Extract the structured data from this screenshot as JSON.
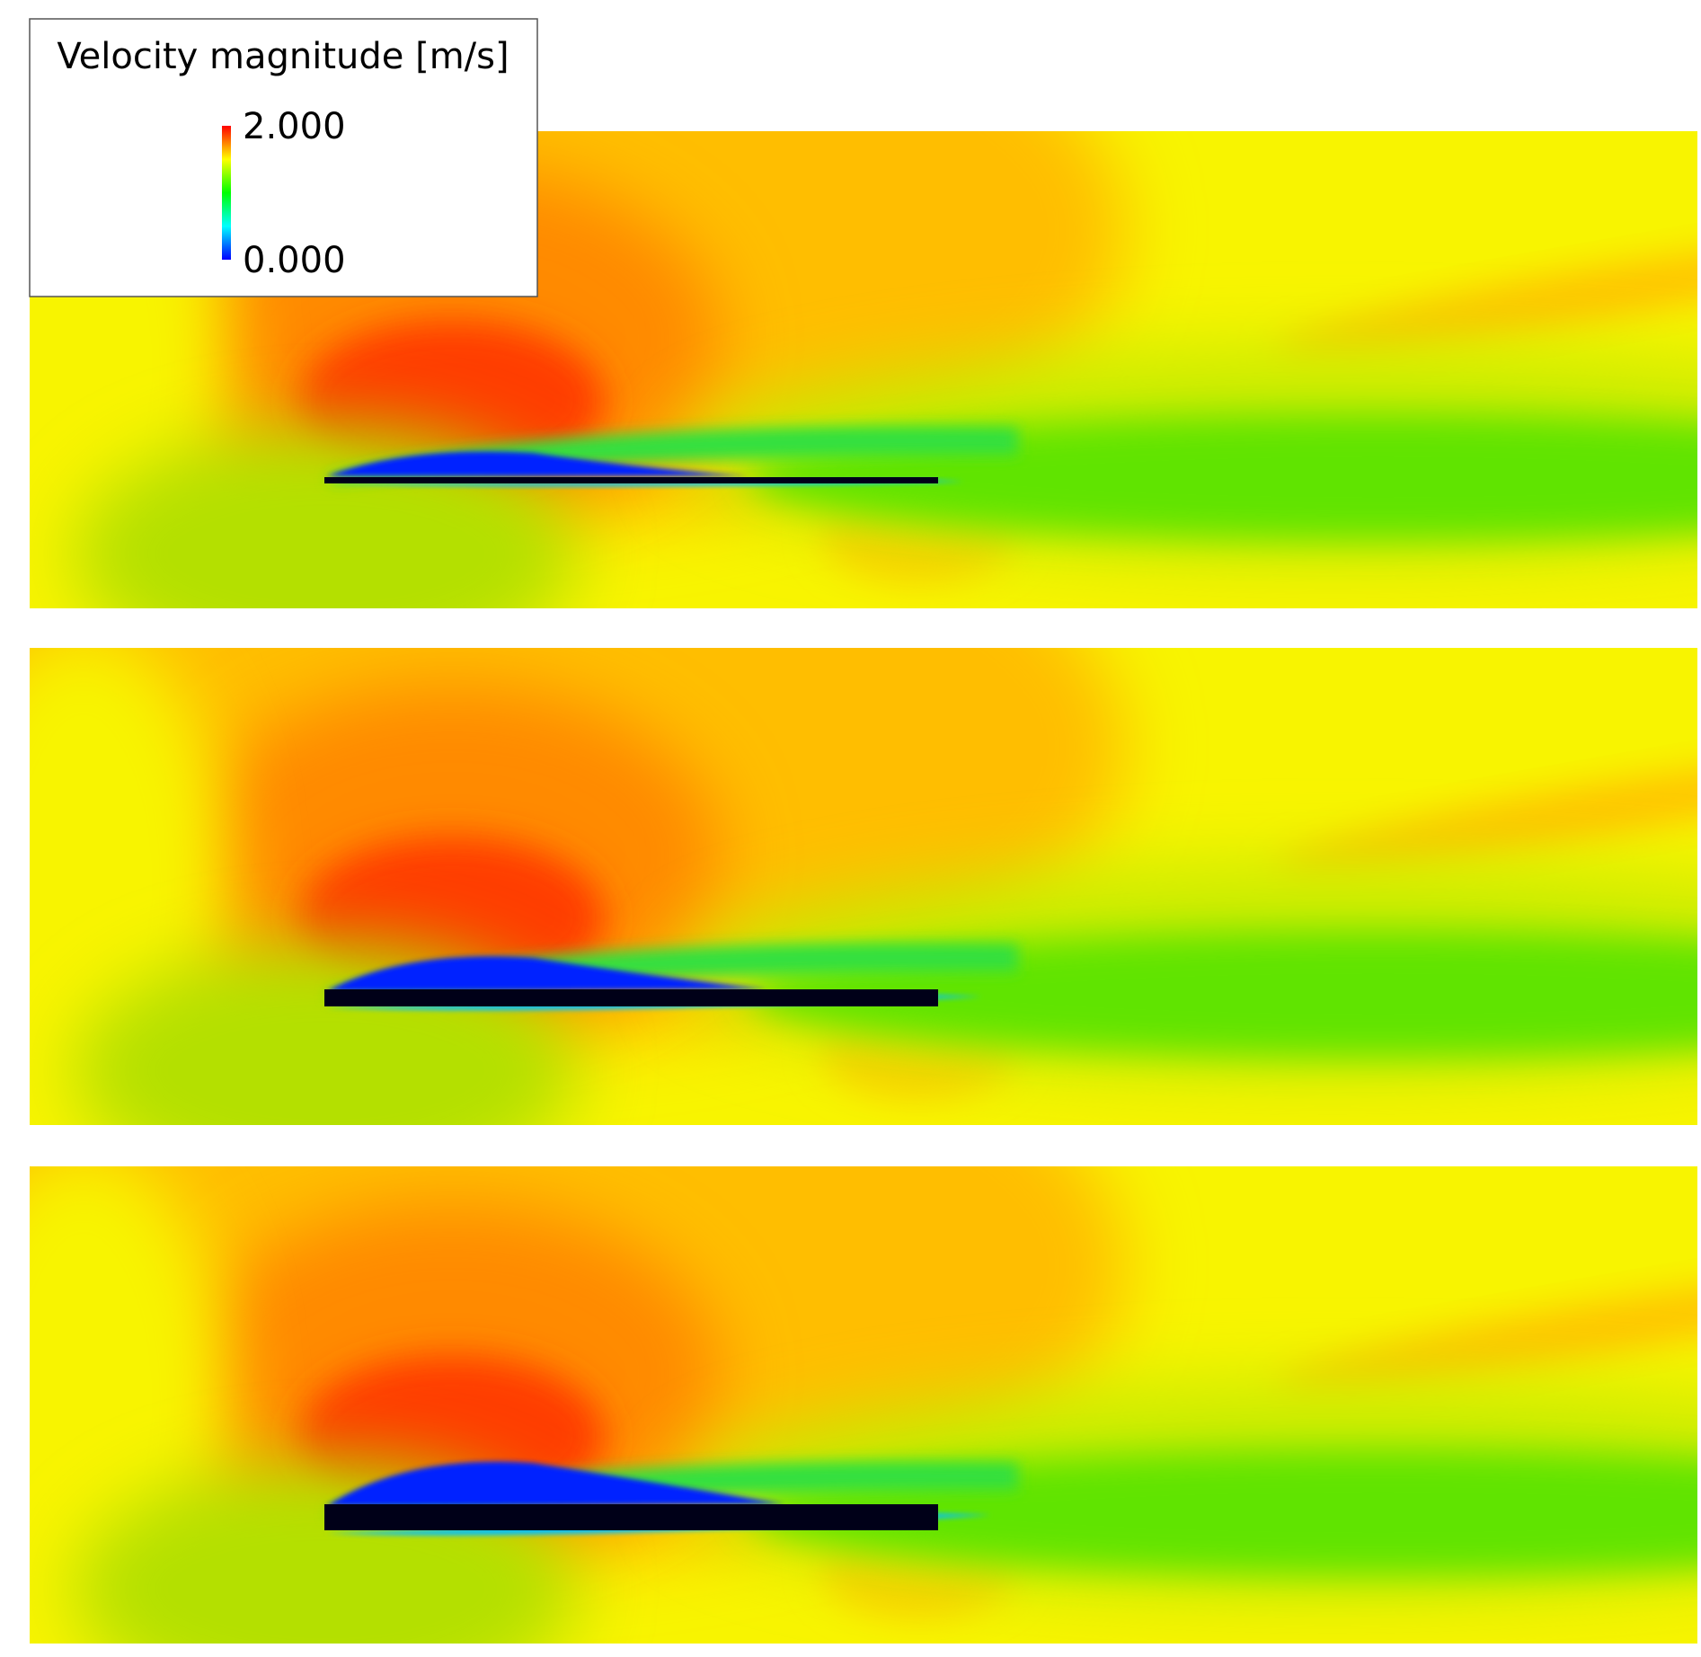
{
  "legend": {
    "title": "Velocity magnitude [m/s]",
    "ticks": [
      {
        "value": 2,
        "label": "2.000"
      },
      {
        "value": 0,
        "label": "0.000"
      }
    ]
  }
}
